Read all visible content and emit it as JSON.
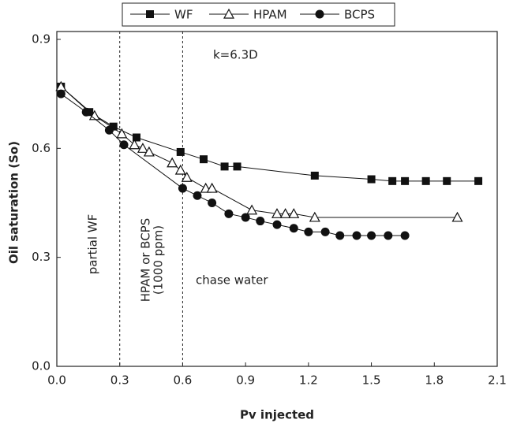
{
  "chart_data": {
    "type": "line",
    "xlabel": "Pv injected",
    "ylabel": "Oil saturation (So)",
    "xlim": [
      0,
      2.1
    ],
    "ylim": [
      0,
      0.9
    ],
    "xticks": [
      {
        "value": 0,
        "label": "0.0"
      },
      0.3,
      0.6,
      0.9,
      1.2,
      1.5,
      1.8,
      2.1
    ],
    "yticks": [
      {
        "value": 0,
        "label": "0.0"
      },
      0.3,
      0.6,
      0.9
    ],
    "vlines": [
      0.3,
      0.6
    ],
    "annotations": [
      {
        "text": "k=6.3D"
      },
      {
        "text": "partial WF"
      },
      {
        "lines": [
          "HPAM or BCPS",
          "(1000 ppm)"
        ]
      },
      {
        "text": "chase water"
      }
    ],
    "series": [
      {
        "name": "WF",
        "color": "#111111",
        "marker": "square",
        "x": [
          0.02,
          0.155,
          0.27,
          0.38,
          0.59,
          0.7,
          0.8,
          0.86,
          1.23,
          1.5,
          1.6,
          1.66,
          1.76,
          1.86,
          2.01
        ],
        "values": [
          0.77,
          0.7,
          0.66,
          0.63,
          0.59,
          0.57,
          0.55,
          0.55,
          0.525,
          0.515,
          0.51,
          0.51,
          0.51,
          0.51,
          0.51
        ]
      },
      {
        "name": "HPAM",
        "color": "#111111",
        "marker": "triangle",
        "x": [
          0.02,
          0.18,
          0.31,
          0.37,
          0.41,
          0.44,
          0.55,
          0.59,
          0.62,
          0.71,
          0.74,
          0.93,
          1.05,
          1.09,
          1.13,
          1.23,
          1.91
        ],
        "values": [
          0.77,
          0.69,
          0.64,
          0.61,
          0.6,
          0.59,
          0.56,
          0.54,
          0.52,
          0.49,
          0.49,
          0.43,
          0.42,
          0.42,
          0.42,
          0.41,
          0.41
        ]
      },
      {
        "name": "BCPS",
        "color": "#111111",
        "marker": "circle",
        "x": [
          0.02,
          0.14,
          0.25,
          0.32,
          0.6,
          0.67,
          0.74,
          0.82,
          0.9,
          0.97,
          1.05,
          1.13,
          1.2,
          1.28,
          1.35,
          1.43,
          1.5,
          1.58,
          1.66
        ],
        "values": [
          0.75,
          0.7,
          0.65,
          0.61,
          0.49,
          0.47,
          0.45,
          0.42,
          0.41,
          0.4,
          0.39,
          0.38,
          0.37,
          0.37,
          0.36,
          0.36,
          0.36,
          0.36,
          0.36
        ]
      }
    ]
  }
}
